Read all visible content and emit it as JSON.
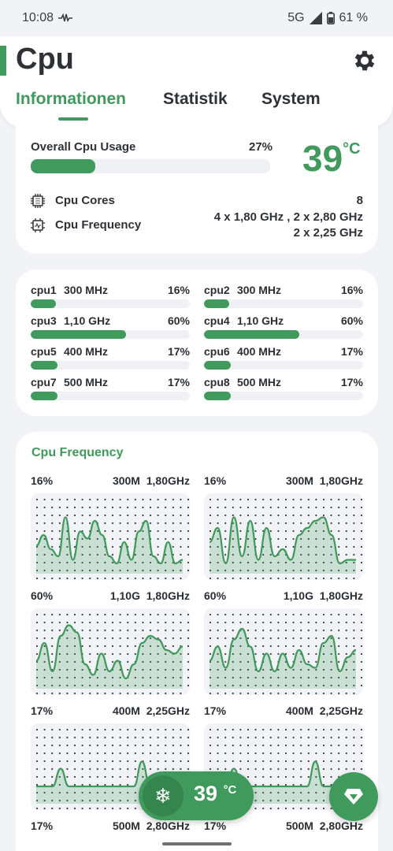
{
  "status": {
    "time": "10:08",
    "network": "5G",
    "battery": "61 %"
  },
  "header": {
    "title": "Cpu",
    "tabs": [
      {
        "label": "Informationen",
        "active": true
      },
      {
        "label": "Statistik",
        "active": false
      },
      {
        "label": "System",
        "active": false
      }
    ]
  },
  "overview": {
    "usage_label": "Overall Cpu Usage",
    "usage_pct_text": "27%",
    "usage_fraction": 0.27,
    "temperature": "39",
    "temp_unit": "°C",
    "cores_label": "Cpu Cores",
    "cores_value": "8",
    "freq_label": "Cpu Frequency",
    "freq_line1": "4 x 1,80 GHz , 2 x 2,80 GHz",
    "freq_line2": "2 x 2,25 GHz"
  },
  "cores": [
    {
      "name": "cpu1",
      "freq": "300 MHz",
      "pct": "16%",
      "fraction": 0.16
    },
    {
      "name": "cpu2",
      "freq": "300 MHz",
      "pct": "16%",
      "fraction": 0.16
    },
    {
      "name": "cpu3",
      "freq": "1,10 GHz",
      "pct": "60%",
      "fraction": 0.6
    },
    {
      "name": "cpu4",
      "freq": "1,10 GHz",
      "pct": "60%",
      "fraction": 0.6
    },
    {
      "name": "cpu5",
      "freq": "400 MHz",
      "pct": "17%",
      "fraction": 0.17
    },
    {
      "name": "cpu6",
      "freq": "400 MHz",
      "pct": "17%",
      "fraction": 0.17
    },
    {
      "name": "cpu7",
      "freq": "500 MHz",
      "pct": "17%",
      "fraction": 0.17
    },
    {
      "name": "cpu8",
      "freq": "500 MHz",
      "pct": "17%",
      "fraction": 0.17
    }
  ],
  "frequency_section": {
    "title": "Cpu Frequency",
    "graphs": [
      {
        "pct": "16%",
        "freq": "300M  1,80GHz",
        "values": [
          0.35,
          0.5,
          0.3,
          0.2,
          0.75,
          0.15,
          0.55,
          0.45,
          0.7,
          0.5,
          0.2,
          0.1,
          0.4,
          0.15,
          0.55,
          0.7,
          0.2,
          0.1,
          0.4,
          0.1,
          0.15
        ]
      },
      {
        "pct": "16%",
        "freq": "300M  1,80GHz",
        "values": [
          0.4,
          0.6,
          0.1,
          0.75,
          0.2,
          0.7,
          0.15,
          0.6,
          0.2,
          0.3,
          0.15,
          0.5,
          0.6,
          0.7,
          0.75,
          0.5,
          0.1,
          0.15,
          0.15
        ]
      },
      {
        "pct": "60%",
        "freq": "1,10G  1,80GHz",
        "values": [
          0.35,
          0.6,
          0.2,
          0.7,
          0.85,
          0.75,
          0.3,
          0.15,
          0.45,
          0.2,
          0.35,
          0.1,
          0.3,
          0.6,
          0.7,
          0.65,
          0.5,
          0.45,
          0.55
        ]
      },
      {
        "pct": "60%",
        "freq": "1,10G  1,80GHz",
        "values": [
          0.35,
          0.55,
          0.25,
          0.65,
          0.8,
          0.55,
          0.2,
          0.45,
          0.2,
          0.45,
          0.25,
          0.5,
          0.3,
          0.25,
          0.6,
          0.7,
          0.2,
          0.4,
          0.5
        ]
      },
      {
        "pct": "17%",
        "freq": "400M  2,25GHz",
        "values": [
          0.2,
          0.2,
          0.2,
          0.45,
          0.2,
          0.2,
          0.2,
          0.2,
          0.2,
          0.2,
          0.2,
          0.2,
          0.2,
          0.55,
          0.2,
          0.2,
          0.2,
          0.2,
          0.2
        ]
      },
      {
        "pct": "17%",
        "freq": "400M  2,25GHz",
        "values": [
          0.2,
          0.2,
          0.2,
          0.45,
          0.2,
          0.2,
          0.2,
          0.2,
          0.2,
          0.2,
          0.2,
          0.2,
          0.2,
          0.55,
          0.2,
          0.2,
          0.2,
          0.2,
          0.2
        ]
      },
      {
        "pct": "17%",
        "freq": "500M  2,80GHz",
        "values": []
      },
      {
        "pct": "17%",
        "freq": "500M  2,80GHz",
        "values": []
      }
    ]
  },
  "fab": {
    "temperature": "39",
    "unit": "°C"
  },
  "colors": {
    "accent": "#3f9a5b",
    "track": "#eff1f4",
    "background": "#f1f3f6"
  }
}
